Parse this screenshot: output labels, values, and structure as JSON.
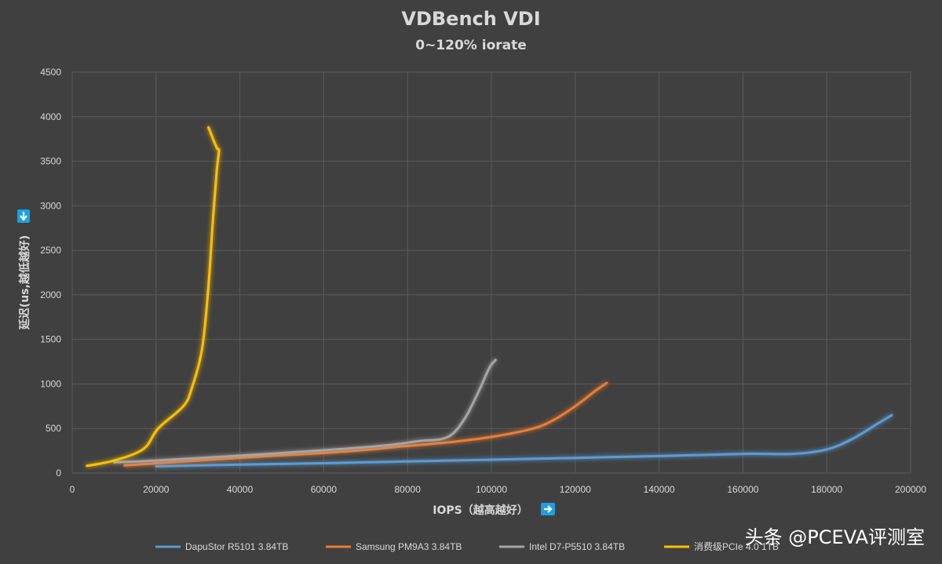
{
  "chart_data": {
    "type": "line",
    "title": "VDBench VDI",
    "subtitle": "0~120% iorate",
    "xlabel": "IOPS（越高越好）",
    "ylabel": "延迟(us,越低越好)",
    "xlim": [
      0,
      200000
    ],
    "ylim": [
      0,
      4500
    ],
    "xticks": [
      0,
      20000,
      40000,
      60000,
      80000,
      100000,
      120000,
      140000,
      160000,
      180000,
      200000
    ],
    "yticks": [
      0,
      500,
      1000,
      1500,
      2000,
      2500,
      3000,
      3500,
      4000,
      4500
    ],
    "grid": true,
    "legend_position": "bottom",
    "series": [
      {
        "name": "DapuStor R5101 3.84TB",
        "color": "#5b9bd5",
        "x": [
          20000,
          40000,
          60000,
          80000,
          100000,
          120000,
          140000,
          160000,
          172000,
          180000,
          186000,
          192000,
          195500
        ],
        "y": [
          75,
          95,
          110,
          130,
          150,
          170,
          190,
          215,
          215,
          265,
          380,
          550,
          650
        ]
      },
      {
        "name": "Samsung PM9A3 3.84TB",
        "color": "#ed7d31",
        "x": [
          12500,
          30000,
          45000,
          60000,
          70000,
          80000,
          90000,
          100000,
          110000,
          115000,
          120000,
          125000,
          127500
        ],
        "y": [
          85,
          140,
          185,
          225,
          260,
          305,
          345,
          405,
          500,
          600,
          750,
          930,
          1010
        ]
      },
      {
        "name": "Intel D7-P5510 3.84TB",
        "color": "#a5a5a5",
        "x": [
          10000,
          20000,
          40000,
          60000,
          75000,
          83000,
          88000,
          91000,
          94000,
          97000,
          99500,
          101000
        ],
        "y": [
          120,
          140,
          195,
          255,
          310,
          360,
          380,
          450,
          640,
          920,
          1180,
          1270
        ]
      },
      {
        "name": "消费级PCIe 4.0 1TB",
        "color": "#ffc000",
        "x": [
          3500,
          10000,
          17000,
          20500,
          26500,
          28500,
          31000,
          32500,
          33500,
          34500,
          35000,
          34500,
          32500
        ],
        "y": [
          80,
          140,
          270,
          500,
          750,
          950,
          1400,
          2100,
          2800,
          3400,
          3620,
          3650,
          3880
        ]
      }
    ]
  },
  "watermark": "头条 @PCEVA评测室"
}
